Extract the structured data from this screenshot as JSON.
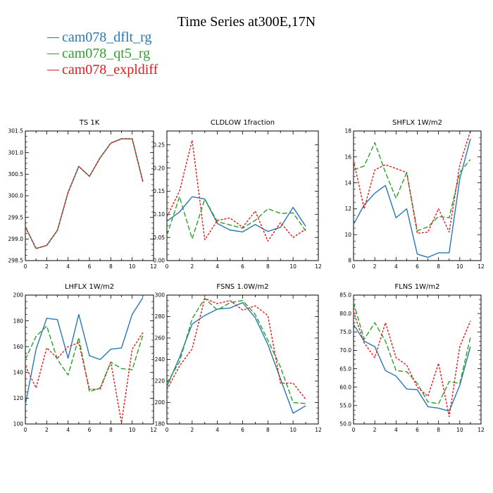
{
  "title": "Time Series at300E,17N",
  "colors": {
    "dflt": "#2878b4",
    "qt5": "#2ca02c",
    "expl": "#e41a1c"
  },
  "legend": [
    {
      "name": "cam078_dflt_rg",
      "color": "#2878b4"
    },
    {
      "name": "cam078_qt5_rg",
      "color": "#2ca02c"
    },
    {
      "name": "cam078_expldiff",
      "color": "#e41a1c"
    }
  ],
  "chart_data": [
    {
      "type": "line",
      "title": "TS   1K",
      "xlim": [
        0,
        12
      ],
      "ylim": [
        298.5,
        301.5
      ],
      "xticks": [
        "0",
        "2",
        "4",
        "6",
        "8",
        "10",
        "12"
      ],
      "yticks": [
        "298.5",
        "299.0",
        "299.5",
        "300.0",
        "300.5",
        "301.0",
        "301.5"
      ],
      "ytick_values": [
        298.5,
        299.0,
        299.5,
        300.0,
        300.5,
        301.0,
        301.5
      ],
      "x": [
        0,
        1,
        2,
        3,
        4,
        5,
        6,
        7,
        8,
        9,
        10,
        11
      ],
      "series": [
        {
          "name": "cam078_dflt_rg",
          "values": [
            299.28,
            298.78,
            298.85,
            299.2,
            300.08,
            300.68,
            300.45,
            300.88,
            301.22,
            301.32,
            301.32,
            300.33
          ]
        },
        {
          "name": "cam078_qt5_rg",
          "values": [
            299.28,
            298.78,
            298.85,
            299.2,
            300.08,
            300.68,
            300.45,
            300.88,
            301.22,
            301.32,
            301.32,
            300.33
          ]
        },
        {
          "name": "cam078_expldiff",
          "values": [
            299.28,
            298.78,
            298.85,
            299.2,
            300.08,
            300.68,
            300.45,
            300.88,
            301.22,
            301.32,
            301.32,
            300.33
          ]
        }
      ]
    },
    {
      "type": "line",
      "title": "CLDLOW   1fraction",
      "xlim": [
        0,
        12
      ],
      "ylim": [
        0.0,
        0.28
      ],
      "xticks": [
        "0",
        "2",
        "4",
        "6",
        "8",
        "10",
        "12"
      ],
      "yticks": [
        "0.00",
        "0.05",
        "0.10",
        "0.15",
        "0.20",
        "0.25"
      ],
      "ytick_values": [
        0.0,
        0.05,
        0.1,
        0.15,
        0.2,
        0.25
      ],
      "x": [
        0,
        1,
        2,
        3,
        4,
        5,
        6,
        7,
        8,
        9,
        10,
        11
      ],
      "series": [
        {
          "name": "cam078_dflt_rg",
          "values": [
            0.085,
            0.105,
            0.138,
            0.133,
            0.08,
            0.066,
            0.062,
            0.078,
            0.063,
            0.072,
            0.115,
            0.074
          ]
        },
        {
          "name": "cam078_qt5_rg",
          "values": [
            0.055,
            0.138,
            0.047,
            0.133,
            0.084,
            0.077,
            0.07,
            0.087,
            0.112,
            0.102,
            0.103,
            0.064
          ]
        },
        {
          "name": "cam078_expldiff",
          "values": [
            0.095,
            0.15,
            0.26,
            0.045,
            0.087,
            0.092,
            0.072,
            0.107,
            0.042,
            0.082,
            0.05,
            0.068
          ]
        }
      ]
    },
    {
      "type": "line",
      "title": "SHFLX   1W/m2",
      "xlim": [
        0,
        12
      ],
      "ylim": [
        8,
        18
      ],
      "xticks": [
        "0",
        "2",
        "4",
        "6",
        "8",
        "10",
        "12"
      ],
      "yticks": [
        "8",
        "10",
        "12",
        "14",
        "16",
        "18"
      ],
      "ytick_values": [
        8,
        10,
        12,
        14,
        16,
        18
      ],
      "x": [
        0,
        1,
        2,
        3,
        4,
        5,
        6,
        7,
        8,
        9,
        10,
        11
      ],
      "series": [
        {
          "name": "cam078_dflt_rg",
          "values": [
            10.8,
            12.3,
            13.2,
            13.8,
            11.3,
            12.0,
            8.5,
            8.25,
            8.6,
            8.6,
            14.3,
            17.4
          ]
        },
        {
          "name": "cam078_qt5_rg",
          "values": [
            15.0,
            15.3,
            17.1,
            14.8,
            12.8,
            14.8,
            10.3,
            10.6,
            11.4,
            11.3,
            14.8,
            15.8
          ]
        },
        {
          "name": "cam078_expldiff",
          "values": [
            15.7,
            12.0,
            15.0,
            15.4,
            15.1,
            14.8,
            10.1,
            10.2,
            12.0,
            10.2,
            15.4,
            18.0
          ]
        }
      ]
    },
    {
      "type": "line",
      "title": "LHFLX   1W/m2",
      "xlim": [
        0,
        12
      ],
      "ylim": [
        100,
        200
      ],
      "xticks": [
        "0",
        "2",
        "4",
        "6",
        "8",
        "10",
        "12"
      ],
      "yticks": [
        "100",
        "120",
        "140",
        "160",
        "180",
        "200"
      ],
      "ytick_values": [
        100,
        120,
        140,
        160,
        180,
        200
      ],
      "x": [
        0,
        1,
        2,
        3,
        4,
        5,
        6,
        7,
        8,
        9,
        10,
        11
      ],
      "series": [
        {
          "name": "cam078_dflt_rg",
          "values": [
            115,
            158,
            182,
            181,
            151,
            185,
            153,
            150,
            158,
            159,
            185,
            198
          ]
        },
        {
          "name": "cam078_qt5_rg",
          "values": [
            150,
            168,
            176,
            150,
            138,
            167,
            125,
            128,
            148,
            143,
            142,
            169
          ]
        },
        {
          "name": "cam078_expldiff",
          "values": [
            145,
            128,
            159,
            151,
            160,
            163,
            127,
            127,
            148,
            101,
            158,
            171
          ]
        }
      ]
    },
    {
      "type": "line",
      "title": "FSNS   1.0W/m2",
      "xlim": [
        0,
        12
      ],
      "ylim": [
        180,
        300
      ],
      "xticks": [
        "0",
        "2",
        "4",
        "6",
        "8",
        "10",
        "12"
      ],
      "yticks": [
        "180",
        "200",
        "220",
        "240",
        "260",
        "280",
        "300"
      ],
      "ytick_values": [
        180,
        200,
        220,
        240,
        260,
        280,
        300
      ],
      "x": [
        0,
        1,
        2,
        3,
        4,
        5,
        6,
        7,
        8,
        9,
        10,
        11
      ],
      "series": [
        {
          "name": "cam078_dflt_rg",
          "values": [
            215,
            242,
            273,
            281,
            287,
            288,
            293,
            279,
            254,
            222,
            190,
            197
          ]
        },
        {
          "name": "cam078_qt5_rg",
          "values": [
            218,
            238,
            278,
            297,
            286,
            293,
            295,
            282,
            258,
            233,
            200,
            199
          ]
        },
        {
          "name": "cam078_expldiff",
          "values": [
            212,
            234,
            250,
            297,
            292,
            295,
            286,
            290,
            281,
            218,
            218,
            203
          ]
        }
      ]
    },
    {
      "type": "line",
      "title": "FLNS   1W/m2",
      "xlim": [
        0,
        12
      ],
      "ylim": [
        50,
        85
      ],
      "xticks": [
        "0",
        "2",
        "4",
        "6",
        "8",
        "10",
        "12"
      ],
      "yticks": [
        "50.0",
        "55.0",
        "60.0",
        "65.0",
        "70.0",
        "75.0",
        "80.0",
        "85.0"
      ],
      "ytick_values": [
        50,
        55,
        60,
        65,
        70,
        75,
        80,
        85
      ],
      "x": [
        0,
        1,
        2,
        3,
        4,
        5,
        6,
        7,
        8,
        9,
        10,
        11
      ],
      "series": [
        {
          "name": "cam078_dflt_rg",
          "values": [
            77.0,
            72.5,
            71.0,
            64.5,
            63.0,
            59.5,
            59.3,
            54.7,
            54.3,
            53.5,
            60.5,
            71.0
          ]
        },
        {
          "name": "cam078_qt5_rg",
          "values": [
            83.0,
            73.0,
            77.5,
            72.5,
            64.5,
            64.2,
            61.0,
            56.0,
            55.5,
            61.5,
            61.0,
            73.5
          ]
        },
        {
          "name": "cam078_expldiff",
          "values": [
            80.5,
            72.0,
            68.0,
            77.5,
            68.0,
            66.0,
            60.0,
            57.5,
            66.5,
            52.0,
            71.0,
            78.0
          ]
        }
      ]
    }
  ]
}
